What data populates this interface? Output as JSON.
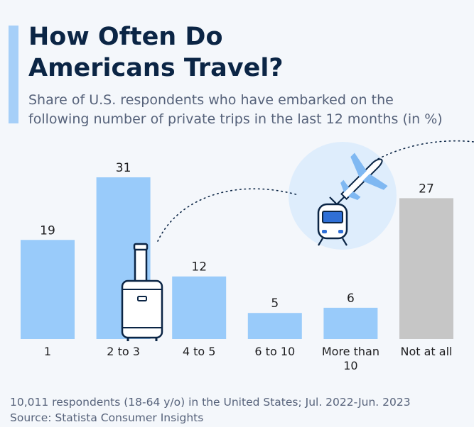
{
  "header": {
    "title_line1": "How Often Do",
    "title_line2": "Americans Travel?",
    "subtitle_line1": "Share of U.S. respondents who have embarked on the",
    "subtitle_line2": "following number of private trips in the last 12 months (in %)"
  },
  "chart_data": {
    "type": "bar",
    "title": "How Often Do Americans Travel?",
    "categories": [
      "1",
      "2 to 3",
      "4 to 5",
      "6 to 10",
      "More than 10",
      "Not at all"
    ],
    "category_lines": [
      [
        "1"
      ],
      [
        "2 to 3"
      ],
      [
        "4 to 5"
      ],
      [
        "6 to 10"
      ],
      [
        "More than",
        "10"
      ],
      [
        "Not at all"
      ]
    ],
    "values": [
      19,
      31,
      12,
      5,
      6,
      27
    ],
    "bar_colors": [
      "#99cbfa",
      "#99cbfa",
      "#99cbfa",
      "#99cbfa",
      "#99cbfa",
      "#c6c6c6"
    ],
    "ylim": [
      0,
      31
    ],
    "grid": false,
    "legend": "none"
  },
  "icons": [
    "suitcase-icon",
    "train-icon",
    "airplane-icon"
  ],
  "colors": {
    "bar": "#99cbfa",
    "highlight_bar": "#c6c6c6",
    "title": "#0b2545",
    "accent": "#a6cff8"
  },
  "footer": {
    "note": "10,011 respondents (18-64 y/o) in the United States; Jul. 2022-Jun. 2023",
    "source": "Source: Statista Consumer Insights"
  }
}
